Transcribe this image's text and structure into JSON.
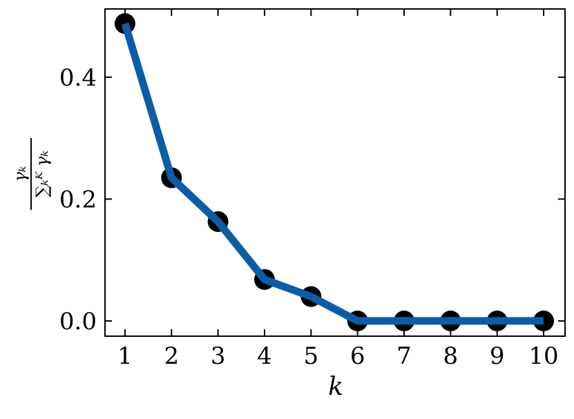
{
  "chart_data": {
    "type": "line",
    "x_label": "k",
    "y_label_numerator": "γₖ",
    "y_label_denominator": "∑ₖᴷ γₖ",
    "x": [
      1,
      2,
      3,
      4,
      5,
      6,
      7,
      8,
      9,
      10
    ],
    "series": [
      {
        "color": "#0c5da5",
        "marker_color": "#000000",
        "values": [
          0.488,
          0.235,
          0.163,
          0.068,
          0.04,
          0.0,
          0.0,
          0.0,
          0.0,
          0.0
        ]
      }
    ],
    "xlim": [
      0.57,
      10.46
    ],
    "ylim": [
      -0.025,
      0.512
    ],
    "xticks": [
      1,
      2,
      3,
      4,
      5,
      6,
      7,
      8,
      9,
      10
    ],
    "yticks": [
      {
        "value": 0,
        "label": "0.0"
      },
      {
        "value": 0.2,
        "label": "0.2"
      },
      {
        "value": 0.4,
        "label": "0.4"
      }
    ]
  }
}
